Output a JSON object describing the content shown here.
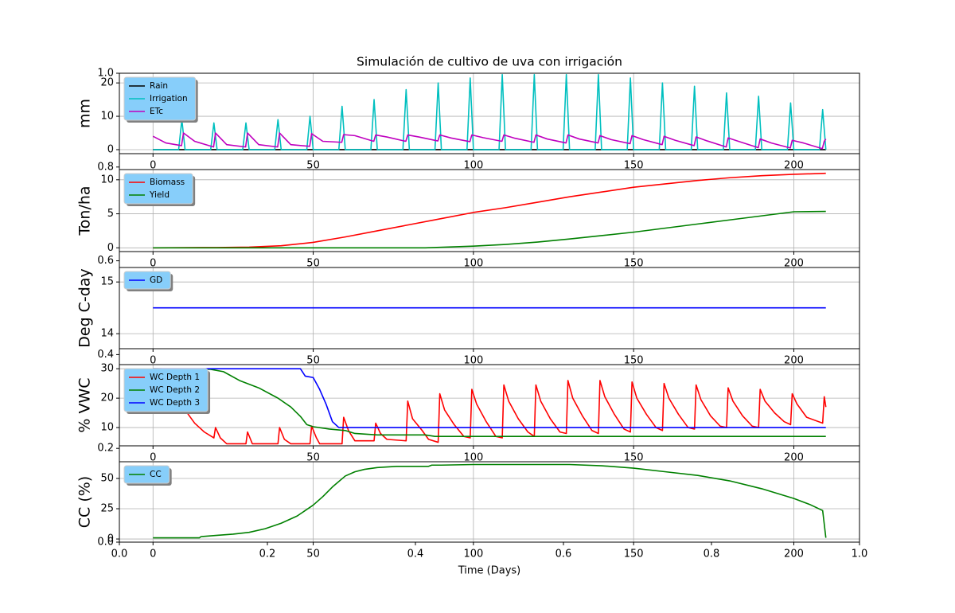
{
  "chart_data": [
    {
      "type": "frame",
      "title": "Simulación de cultivo de uva con irrigación",
      "xlabel": "Time (Days)",
      "xlim": [
        0,
        1
      ],
      "ylim": [
        0,
        1
      ],
      "xticks": [
        {
          "value": 0,
          "label": "0.0"
        },
        {
          "value": 0.2,
          "label": "0.2"
        },
        {
          "value": 0.4,
          "label": "0.4"
        },
        {
          "value": 0.6,
          "label": "0.6"
        },
        {
          "value": 0.8,
          "label": "0.8"
        },
        {
          "value": 1,
          "label": "1.0"
        }
      ],
      "yticks": [
        {
          "value": 0,
          "label": "0.0"
        },
        {
          "value": 0.2,
          "label": "0.2"
        },
        {
          "value": 0.4,
          "label": "0.4"
        },
        {
          "value": 0.6,
          "label": "0.6"
        },
        {
          "value": 0.8,
          "label": "0.8"
        },
        {
          "value": 1,
          "label": "1.0"
        }
      ]
    },
    {
      "type": "line",
      "ylabel": "mm",
      "xlim": [
        -10.5,
        220.5
      ],
      "ylim": [
        -1.2,
        22.9
      ],
      "xticks": [
        0,
        50,
        100,
        150,
        200
      ],
      "yticks": [
        0,
        10,
        20
      ],
      "grid": true,
      "legend": "upper left",
      "series": [
        {
          "name": "Rain",
          "color": "#000000",
          "x": [
            0,
            210
          ],
          "values": [
            0,
            0
          ]
        },
        {
          "name": "Irrigation",
          "color": "#00bfbf",
          "x": [
            0,
            8,
            9,
            10,
            18,
            19,
            20,
            28,
            29,
            30,
            38,
            39,
            40,
            48,
            49,
            50,
            58,
            59,
            60,
            68,
            69,
            70,
            78,
            79,
            80,
            88,
            89,
            90,
            98,
            99,
            100,
            108,
            109,
            110,
            118,
            119,
            120,
            128,
            129,
            130,
            138,
            139,
            140,
            148,
            149,
            150,
            158,
            159,
            160,
            168,
            169,
            170,
            178,
            179,
            180,
            188,
            189,
            190,
            198,
            199,
            200,
            208,
            209,
            210
          ],
          "values": [
            0,
            0,
            9,
            0,
            0,
            8,
            0,
            0,
            8,
            0,
            0,
            9,
            0,
            0,
            10,
            0,
            0,
            13,
            0,
            0,
            15,
            0,
            0,
            18,
            0,
            0,
            20,
            0,
            0,
            21.5,
            0,
            0,
            22.5,
            0,
            0,
            22.5,
            0,
            0,
            22.5,
            0,
            0,
            22.5,
            0,
            0,
            21.5,
            0,
            0,
            20,
            0,
            0,
            19,
            0,
            0,
            17,
            0,
            0,
            16,
            0,
            0,
            14,
            0,
            0,
            12,
            0
          ]
        },
        {
          "name": "ETc",
          "color": "#bf00bf",
          "x": [
            0,
            4,
            8.9,
            9.5,
            13,
            18.9,
            19.5,
            23,
            28.9,
            29.5,
            33,
            38.9,
            39.5,
            43,
            48.9,
            49.5,
            53,
            58.9,
            59.5,
            63,
            68.9,
            69.5,
            73,
            78.9,
            79.5,
            83,
            88.9,
            89.5,
            93,
            98.9,
            99.5,
            103,
            108.9,
            109.5,
            113,
            118.9,
            119.5,
            123,
            128.9,
            129.5,
            133,
            138.9,
            139.5,
            143,
            148.9,
            149.5,
            153,
            158.9,
            159.5,
            163,
            168.9,
            169.5,
            173,
            178.9,
            179.5,
            183,
            188.9,
            189.5,
            193,
            198.9,
            199.5,
            203,
            208.9,
            209.5,
            210
          ],
          "values": [
            4,
            2,
            1.2,
            5,
            2.5,
            0.8,
            5,
            1.5,
            0.8,
            5,
            1.5,
            0.8,
            5,
            1.5,
            1,
            4.8,
            2.5,
            2.2,
            4.5,
            4.2,
            2.5,
            4.4,
            3.8,
            2.5,
            4.4,
            3.8,
            2.6,
            4.4,
            3.5,
            2.4,
            4.4,
            3.6,
            2.5,
            4.4,
            3.4,
            2.2,
            4.4,
            3.2,
            2,
            4.4,
            3.2,
            2,
            4.2,
            3,
            1.8,
            4.2,
            3,
            1.5,
            4,
            2.8,
            1.2,
            3.8,
            2.6,
            0.8,
            3.5,
            2.4,
            0.6,
            3.2,
            2,
            0.5,
            2.8,
            2,
            0.3,
            2.5,
            3.2
          ]
        }
      ]
    },
    {
      "type": "line",
      "ylabel": "Ton/ha",
      "xlim": [
        -10.5,
        220.5
      ],
      "ylim": [
        -0.55,
        11.5
      ],
      "xticks": [
        0,
        50,
        100,
        150,
        200
      ],
      "yticks": [
        0,
        5,
        10
      ],
      "grid": true,
      "legend": "upper left",
      "series": [
        {
          "name": "Biomass",
          "color": "#ff0000",
          "x": [
            0,
            20,
            30,
            40,
            50,
            60,
            70,
            80,
            90,
            100,
            110,
            120,
            130,
            140,
            150,
            160,
            170,
            180,
            190,
            200,
            210
          ],
          "values": [
            0,
            0.05,
            0.1,
            0.3,
            0.8,
            1.6,
            2.5,
            3.4,
            4.3,
            5.2,
            5.9,
            6.7,
            7.5,
            8.2,
            8.9,
            9.4,
            9.9,
            10.3,
            10.6,
            10.8,
            10.95
          ]
        },
        {
          "name": "Yield",
          "color": "#008000",
          "x": [
            0,
            85,
            100,
            110,
            120,
            130,
            140,
            150,
            160,
            170,
            180,
            190,
            200,
            210
          ],
          "values": [
            0,
            0,
            0.25,
            0.5,
            0.85,
            1.3,
            1.8,
            2.3,
            2.9,
            3.5,
            4.1,
            4.7,
            5.3,
            5.35
          ]
        }
      ]
    },
    {
      "type": "line",
      "ylabel": "Deg C-day",
      "xlim": [
        -10.5,
        220.5
      ],
      "ylim": [
        13.71,
        15.28
      ],
      "xticks": [
        0,
        50,
        100,
        150,
        200
      ],
      "yticks": [
        14,
        15
      ],
      "grid": true,
      "legend": "upper left",
      "series": [
        {
          "name": "GD",
          "color": "#0000ff",
          "x": [
            0,
            210
          ],
          "values": [
            14.5,
            14.5
          ]
        }
      ]
    },
    {
      "type": "line",
      "ylabel": "% VWC",
      "xlim": [
        -10.5,
        220.5
      ],
      "ylim": [
        3.8,
        31.4
      ],
      "xticks": [
        0,
        50,
        100,
        150,
        200
      ],
      "yticks": [
        10,
        20,
        30
      ],
      "grid": true,
      "legend": "upper left",
      "series": [
        {
          "name": "WC Depth 1",
          "color": "#ff0000",
          "x": [
            0,
            5,
            8,
            9,
            10,
            13,
            16,
            19,
            19.5,
            21,
            23,
            29,
            29.5,
            31,
            39,
            39.5,
            41,
            43,
            49,
            49.5,
            51,
            52,
            59,
            59.5,
            61,
            63,
            69,
            69.5,
            71,
            73,
            79,
            79.5,
            81,
            84,
            86,
            89,
            89.5,
            91,
            94,
            97,
            99,
            99.5,
            101,
            104,
            107,
            109,
            109.5,
            111,
            114,
            117,
            119,
            119.5,
            121,
            124,
            127,
            129,
            129.5,
            131,
            134,
            137,
            139,
            139.5,
            141,
            144,
            147,
            149,
            149.5,
            151,
            154,
            157,
            159,
            159.5,
            161,
            164,
            167,
            169,
            169.5,
            171,
            174,
            177,
            179,
            179.5,
            181,
            184,
            187,
            189,
            189.5,
            191,
            194,
            197,
            199,
            199.5,
            201,
            204,
            209,
            209.5,
            210
          ],
          "values": [
            25,
            21,
            18.5,
            19.5,
            16,
            11.5,
            8.5,
            6.5,
            10,
            6.5,
            4.5,
            4.5,
            8.5,
            4.5,
            4.5,
            10,
            6,
            4.5,
            4.5,
            10.5,
            6.5,
            4.5,
            4.5,
            13.5,
            9,
            5.5,
            5.5,
            11.5,
            8,
            6,
            5.5,
            19,
            13,
            9,
            6,
            5,
            21.5,
            16,
            11,
            7,
            6.5,
            23,
            18,
            12,
            7,
            6.5,
            24.5,
            19,
            13,
            8.5,
            7,
            24.5,
            19,
            13,
            8.5,
            8,
            26,
            20,
            14,
            9,
            8,
            26,
            20.5,
            14.5,
            9.5,
            8.5,
            25.5,
            20,
            14.5,
            10,
            9,
            25,
            20,
            14.5,
            10,
            9.5,
            24.5,
            19.5,
            14,
            10.5,
            10,
            23.5,
            19,
            14,
            10.5,
            10,
            23,
            19,
            15,
            12,
            11,
            21.5,
            18,
            13.5,
            11.5,
            20.5,
            17
          ]
        },
        {
          "name": "WC Depth 2",
          "color": "#008000",
          "x": [
            0,
            18,
            22,
            27,
            33,
            39,
            43,
            46,
            48,
            50,
            55,
            60,
            63,
            70,
            85,
            88,
            210
          ],
          "values": [
            30,
            29.8,
            29,
            26,
            23.5,
            20,
            17,
            13.8,
            11,
            10.3,
            9.5,
            9,
            8,
            7.5,
            7.5,
            7,
            7
          ]
        },
        {
          "name": "WC Depth 3",
          "color": "#0000ff",
          "x": [
            0,
            46,
            47.5,
            50,
            52,
            54,
            56,
            58,
            210
          ],
          "values": [
            30,
            30,
            27.5,
            27,
            23,
            18,
            12,
            10,
            10
          ]
        }
      ]
    },
    {
      "type": "line",
      "ylabel": "CC (%)",
      "xlim": [
        -10.5,
        220.5
      ],
      "ylim": [
        -2.6,
        63.8
      ],
      "xticks": [
        0,
        50,
        100,
        150,
        200
      ],
      "yticks": [
        0,
        25,
        50
      ],
      "grid": true,
      "legend": "upper left",
      "series": [
        {
          "name": "CC",
          "color": "#008000",
          "x": [
            0,
            14.5,
            15,
            20,
            25,
            30,
            35,
            40,
            45,
            50,
            53,
            56,
            60,
            63,
            66,
            70,
            76,
            86,
            87,
            90,
            100,
            130,
            140,
            150,
            160,
            170,
            180,
            190,
            200,
            205,
            209,
            210
          ],
          "values": [
            1,
            1,
            2,
            3,
            4,
            5.5,
            8.5,
            13,
            19,
            28,
            35,
            43,
            52,
            55.5,
            57.5,
            59,
            60,
            60,
            61,
            61,
            61.5,
            61.5,
            60.5,
            58.5,
            55.5,
            52.5,
            48,
            41.5,
            33.5,
            28.5,
            23.5,
            1
          ]
        }
      ]
    }
  ]
}
